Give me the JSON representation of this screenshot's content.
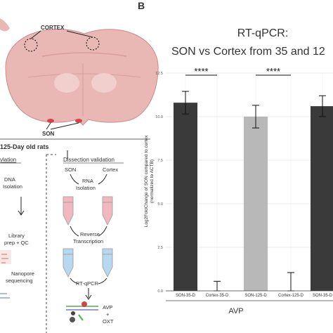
{
  "panel_label": "B",
  "left_panel": {
    "cortex_label": "CORTEX",
    "son_label": "SON",
    "rats_label": "125-Day old rats",
    "methylation_header": "ylation",
    "dissection_header": "Dissection validation",
    "dna_isolation": [
      "DNA",
      "Isolation"
    ],
    "library_prep": [
      "Library",
      "prep + QC"
    ],
    "nanopore": [
      "Nanopore",
      "sequencing"
    ],
    "son_col": "SON",
    "cortex_col": "Cortex",
    "rna_isolation": [
      "RNA",
      "Isolation"
    ],
    "reverse_transcription": [
      "Reverse",
      "Transcription"
    ],
    "rt_qpcr": "RT-qPCR",
    "genes": [
      "AVP",
      "+",
      "OXT"
    ]
  },
  "colors": {
    "dark_bar": "#3a3a3a",
    "light_bar": "#b8b8b8",
    "brain_fill": "#e9b7b4",
    "tube_pink": "#f2b8c0",
    "tube_blue": "#b8d8f0"
  },
  "chart_data": {
    "type": "bar",
    "title_line1": "RT-qPCR:",
    "title_line2": "SON vs Cortex from 35 and 12",
    "ylabel_line1": "Log2FoldChange of SON compared to cortex",
    "ylabel_line2": "(normalized to ACTB)",
    "xgroup_label": "AVP",
    "ylim": [
      0,
      12.5
    ],
    "yticks": [
      "0.0",
      "2.5",
      "5.0",
      "7.5",
      "10.0",
      "12.5"
    ],
    "categories": [
      "SON-35-D",
      "Cortex-35-D",
      "SON-125-D",
      "Cortex-125-D",
      "SON-35-D"
    ],
    "values": [
      10.8,
      0.0,
      10.0,
      0.0,
      10.6
    ],
    "errors": [
      0.65,
      0.55,
      0.65,
      1.05,
      0.6
    ],
    "bar_colors": [
      "#3a3a3a",
      "#3a3a3a",
      "#b8b8b8",
      "#b8b8b8",
      "#3a3a3a"
    ],
    "significance": [
      "****",
      "****"
    ]
  }
}
